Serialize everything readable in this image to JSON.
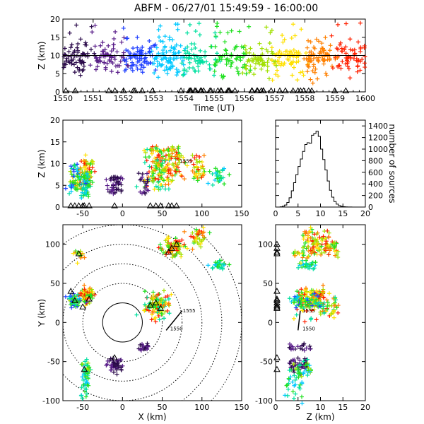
{
  "title": "ABFM - 06/27/01 15:49:59 - 16:00:00",
  "chart_data": [
    {
      "id": "time-height",
      "type": "scatter",
      "xlabel": "Time (UT)",
      "ylabel": "Z (km)",
      "xlim": [
        1550,
        1600
      ],
      "ylim": [
        0,
        20
      ],
      "xticks": [
        "1550",
        "1551",
        "1552",
        "1553",
        "1554",
        "1555",
        "1556",
        "1557",
        "1558",
        "1559",
        "1600"
      ],
      "yticks": [
        0,
        5,
        10,
        15,
        20
      ],
      "colormap": [
        "#2a0a4a",
        "#5a1f8a",
        "#2040ff",
        "#00c8ff",
        "#00e0a0",
        "#20e020",
        "#a0e000",
        "#ffe000",
        "#ff8000",
        "#ff2000"
      ],
      "reference_line_z": 10,
      "markers": "plus",
      "station_marker": "triangle"
    },
    {
      "id": "x-height",
      "type": "scatter",
      "xlabel": "",
      "ylabel": "Z (km)",
      "xlim": [
        -75,
        150
      ],
      "ylim": [
        0,
        20
      ],
      "xticks": [
        -50,
        0,
        50,
        100,
        150
      ],
      "yticks": [
        0,
        5,
        10,
        15,
        20
      ],
      "annotations": [
        "1555"
      ]
    },
    {
      "id": "histogram",
      "type": "bar",
      "xlabel": "",
      "ylabel": "number of sources",
      "xlim": [
        0,
        20
      ],
      "ylim": [
        0,
        1500
      ],
      "xticks": [
        0,
        5,
        10,
        15,
        20
      ],
      "yticks": [
        0,
        200,
        400,
        600,
        800,
        1000,
        1200,
        1400
      ],
      "bin_width": 0.5,
      "bins_start": [
        0,
        0.5,
        1,
        1.5,
        2,
        2.5,
        3,
        3.5,
        4,
        4.5,
        5,
        5.5,
        6,
        6.5,
        7,
        7.5,
        8,
        8.5,
        9,
        9.5,
        10,
        10.5,
        11,
        11.5,
        12,
        12.5,
        13,
        13.5,
        14,
        14.5,
        15,
        15.5,
        16,
        16.5,
        17,
        17.5,
        18,
        18.5,
        19,
        19.5
      ],
      "values": [
        0,
        0,
        5,
        15,
        35,
        80,
        160,
        280,
        420,
        560,
        700,
        830,
        960,
        1080,
        1110,
        1100,
        1240,
        1270,
        1310,
        1220,
        1000,
        820,
        640,
        450,
        290,
        170,
        95,
        50,
        25,
        12,
        6,
        3,
        2,
        1,
        0,
        0,
        0,
        0,
        0,
        0
      ]
    },
    {
      "id": "plan-view",
      "type": "scatter",
      "xlabel": "X (km)",
      "ylabel": "Y (km)",
      "xlim": [
        -75,
        150
      ],
      "ylim": [
        -100,
        125
      ],
      "xticks": [
        -50,
        0,
        50,
        100,
        150
      ],
      "yticks": [
        -100,
        -50,
        0,
        50,
        100
      ],
      "range_rings_km": [
        25,
        50,
        75,
        100,
        125,
        150
      ],
      "annotations": [
        "1555",
        "1550"
      ]
    },
    {
      "id": "z-y",
      "type": "scatter",
      "xlabel": "Z (km)",
      "ylabel": "",
      "xlim": [
        0,
        20
      ],
      "ylim": [
        -100,
        125
      ],
      "xticks": [
        0,
        5,
        10,
        15,
        20
      ],
      "yticks": [
        -100,
        -50,
        0,
        50,
        100
      ],
      "annotations": [
        "1555",
        "1550"
      ]
    }
  ]
}
